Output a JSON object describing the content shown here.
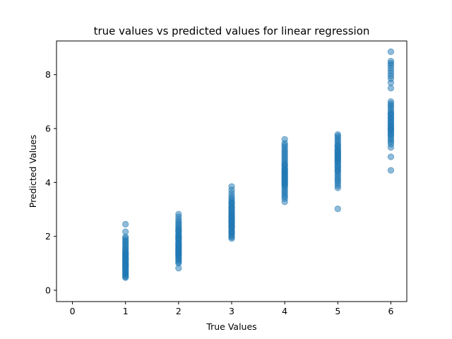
{
  "chart_data": {
    "type": "scatter",
    "title": "true values vs predicted values for linear regression",
    "xlabel": "True Values",
    "ylabel": "Predicted Values",
    "xlim": [
      -0.3,
      6.3
    ],
    "ylim": [
      -0.42,
      9.25
    ],
    "xticks": [
      0,
      1,
      2,
      3,
      4,
      5,
      6
    ],
    "yticks": [
      0,
      2,
      4,
      6,
      8
    ],
    "grid": false,
    "legend": "none",
    "marker_color": "#1f77b4",
    "marker_alpha": 0.5,
    "series": [
      {
        "x": [
          1,
          1,
          1,
          1,
          1,
          1,
          1,
          1,
          1,
          1,
          1,
          1,
          1,
          1,
          1,
          1,
          1,
          1,
          1,
          1,
          1,
          1,
          1,
          1,
          1,
          1,
          1,
          1,
          1,
          1,
          1,
          1,
          1,
          1,
          1,
          1,
          1,
          1,
          1,
          1
        ],
        "y": [
          2.45,
          2.17,
          1.98,
          1.92,
          1.85,
          1.8,
          1.74,
          1.68,
          1.62,
          1.57,
          1.52,
          1.47,
          1.42,
          1.38,
          1.34,
          1.3,
          1.26,
          1.22,
          1.18,
          1.14,
          1.1,
          1.06,
          1.02,
          0.98,
          0.94,
          0.9,
          0.86,
          0.82,
          0.78,
          0.74,
          0.7,
          0.66,
          0.62,
          0.58,
          0.54,
          0.5,
          0.47,
          1.35,
          1.15,
          0.95
        ]
      },
      {
        "x": [
          2,
          2,
          2,
          2,
          2,
          2,
          2,
          2,
          2,
          2,
          2,
          2,
          2,
          2,
          2,
          2,
          2,
          2,
          2,
          2,
          2,
          2,
          2,
          2,
          2,
          2,
          2,
          2,
          2,
          2,
          2,
          2,
          2,
          2,
          2,
          2,
          2,
          2,
          2,
          2,
          2,
          2
        ],
        "y": [
          2.82,
          2.72,
          2.62,
          2.55,
          2.48,
          2.42,
          2.36,
          2.3,
          2.24,
          2.18,
          2.12,
          2.06,
          2.0,
          1.95,
          1.9,
          1.85,
          1.8,
          1.75,
          1.7,
          1.65,
          1.6,
          1.55,
          1.5,
          1.45,
          1.4,
          1.35,
          1.3,
          1.25,
          1.2,
          1.15,
          1.1,
          1.05,
          1.0,
          0.82,
          1.92,
          1.72,
          1.52,
          2.22,
          2.02,
          1.62,
          1.42,
          1.32
        ]
      },
      {
        "x": [
          3,
          3,
          3,
          3,
          3,
          3,
          3,
          3,
          3,
          3,
          3,
          3,
          3,
          3,
          3,
          3,
          3,
          3,
          3,
          3,
          3,
          3,
          3,
          3,
          3,
          3,
          3,
          3,
          3,
          3,
          3,
          3,
          3,
          3,
          3,
          3,
          3,
          3,
          3,
          3
        ],
        "y": [
          3.85,
          3.72,
          3.6,
          3.5,
          3.42,
          3.35,
          3.28,
          3.21,
          3.15,
          3.09,
          3.03,
          2.97,
          2.91,
          2.85,
          2.79,
          2.73,
          2.67,
          2.61,
          2.55,
          2.49,
          2.43,
          2.37,
          2.31,
          2.25,
          2.19,
          2.13,
          2.07,
          2.02,
          1.97,
          1.92,
          2.88,
          2.7,
          2.52,
          2.34,
          2.16,
          3.06,
          3.24,
          2.58,
          2.4,
          2.76
        ]
      },
      {
        "x": [
          4,
          4,
          4,
          4,
          4,
          4,
          4,
          4,
          4,
          4,
          4,
          4,
          4,
          4,
          4,
          4,
          4,
          4,
          4,
          4,
          4,
          4,
          4,
          4,
          4,
          4,
          4,
          4,
          4,
          4,
          4,
          4,
          4,
          4,
          4,
          4,
          4,
          4,
          4,
          4,
          4,
          4
        ],
        "y": [
          5.6,
          5.45,
          5.38,
          5.3,
          5.22,
          5.15,
          5.08,
          5.01,
          4.94,
          4.87,
          4.8,
          4.73,
          4.66,
          4.59,
          4.52,
          4.45,
          4.38,
          4.31,
          4.24,
          4.17,
          4.1,
          4.03,
          3.96,
          3.89,
          3.82,
          3.75,
          3.68,
          3.61,
          3.54,
          3.47,
          3.4,
          3.28,
          4.2,
          4.35,
          4.05,
          4.5,
          3.9,
          4.65,
          4.28,
          4.12,
          3.98,
          4.42
        ]
      },
      {
        "x": [
          5,
          5,
          5,
          5,
          5,
          5,
          5,
          5,
          5,
          5,
          5,
          5,
          5,
          5,
          5,
          5,
          5,
          5,
          5,
          5,
          5,
          5,
          5,
          5,
          5,
          5,
          5,
          5,
          5,
          5,
          5,
          5,
          5,
          5,
          5,
          5,
          5,
          5,
          5,
          5
        ],
        "y": [
          5.78,
          5.72,
          5.65,
          5.58,
          5.51,
          5.44,
          5.37,
          5.3,
          5.23,
          5.16,
          5.09,
          5.02,
          4.95,
          4.88,
          4.81,
          4.74,
          4.67,
          4.6,
          4.53,
          4.46,
          4.39,
          4.32,
          4.25,
          4.18,
          4.11,
          4.04,
          3.97,
          3.88,
          3.8,
          3.02,
          4.9,
          5.05,
          4.75,
          5.2,
          4.6,
          5.35,
          4.45,
          4.98,
          5.12,
          4.84
        ]
      },
      {
        "x": [
          6,
          6,
          6,
          6,
          6,
          6,
          6,
          6,
          6,
          6,
          6,
          6,
          6,
          6,
          6,
          6,
          6,
          6,
          6,
          6,
          6,
          6,
          6,
          6,
          6,
          6,
          6,
          6,
          6,
          6,
          6,
          6,
          6,
          6,
          6,
          6,
          6,
          6,
          6,
          6,
          6,
          6,
          6,
          6
        ],
        "y": [
          8.85,
          8.5,
          8.42,
          8.35,
          8.25,
          8.15,
          8.05,
          7.95,
          7.85,
          7.7,
          7.5,
          7.0,
          6.92,
          6.85,
          6.78,
          6.7,
          6.62,
          6.55,
          6.48,
          6.41,
          6.34,
          6.27,
          6.2,
          6.13,
          6.06,
          5.99,
          5.92,
          5.85,
          5.78,
          5.71,
          5.64,
          5.57,
          5.5,
          5.42,
          5.3,
          4.95,
          4.45,
          6.1,
          5.95,
          6.4,
          6.25,
          5.8,
          6.55,
          6.0
        ]
      }
    ]
  }
}
